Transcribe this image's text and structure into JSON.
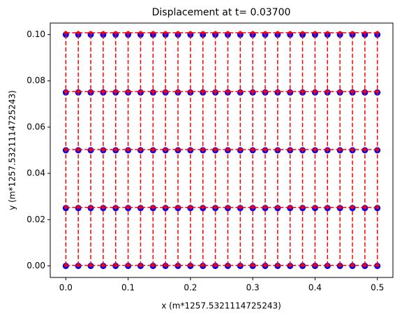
{
  "chart_data": {
    "type": "scatter",
    "title": "Displacement at t=  0.03700",
    "xlabel": "x (m*1257.5321114725243)",
    "ylabel": "y (m*1257.5321114725243)",
    "series": [
      {
        "color": "#0000ff",
        "marker": "circle",
        "columns_x": [
          0,
          0.02,
          0.04,
          0.06,
          0.08,
          0.1,
          0.12,
          0.14,
          0.16,
          0.18,
          0.2,
          0.22,
          0.24,
          0.26,
          0.28,
          0.3,
          0.32,
          0.34,
          0.36,
          0.38,
          0.4,
          0.42,
          0.44,
          0.46,
          0.48,
          0.5
        ],
        "rows_y": [
          0,
          0.025,
          0.05,
          0.075,
          0.1
        ]
      },
      {
        "color": "#ff0000",
        "marker": "dashed-mesh",
        "columns_x": [
          0,
          0.02,
          0.04,
          0.06,
          0.08,
          0.1,
          0.12,
          0.14,
          0.16,
          0.18,
          0.2,
          0.22,
          0.24,
          0.26,
          0.28,
          0.3,
          0.32,
          0.34,
          0.36,
          0.38,
          0.4,
          0.42,
          0.44,
          0.46,
          0.48,
          0.5
        ],
        "rows_y": [
          0.0002,
          0.0253,
          0.0503,
          0.0754,
          0.1008
        ]
      }
    ],
    "xlim": [
      -0.025,
      0.525
    ],
    "xticks": [
      {
        "value": 0,
        "label": "0.0"
      },
      0.1,
      0.2,
      0.3,
      0.4,
      0.5
    ],
    "ylim": [
      -0.005,
      0.105
    ],
    "yticks": [
      {
        "value": 0,
        "label": "0.00"
      },
      {
        "value": 0.02,
        "label": "0.02"
      },
      {
        "value": 0.04,
        "label": "0.04"
      },
      {
        "value": 0.06,
        "label": "0.06"
      },
      {
        "value": 0.08,
        "label": "0.08"
      },
      {
        "value": 0.1,
        "label": "0.10"
      }
    ],
    "grid": false
  }
}
